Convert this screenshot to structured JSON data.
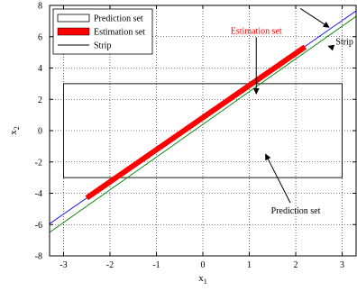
{
  "chart_data": {
    "type": "line",
    "xlabel": "x",
    "xlabel_sub": "1",
    "ylabel": "x",
    "ylabel_sub": "2",
    "xlim": [
      -3.3,
      3.3
    ],
    "ylim": [
      -8,
      8
    ],
    "xticks": [
      -3,
      -2,
      -1,
      0,
      1,
      2,
      3
    ],
    "yticks": [
      -8,
      -6,
      -4,
      -2,
      0,
      2,
      4,
      6,
      8
    ],
    "grid": true,
    "legend_position": "top-left",
    "legend": [
      {
        "label": "Prediction set",
        "style": "box"
      },
      {
        "label": "Estimation set",
        "style": "filled"
      },
      {
        "label": "Strip",
        "style": "line"
      }
    ],
    "series": [
      {
        "name": "Prediction set",
        "kind": "rectangle",
        "x": [
          -3,
          3
        ],
        "y": [
          -3,
          3
        ],
        "color": "#000000"
      },
      {
        "name": "Estimation set",
        "kind": "segment",
        "x": [
          -2.5,
          2.2
        ],
        "y": [
          -4.3,
          5.35
        ],
        "color": "#ff0000"
      },
      {
        "name": "Strip",
        "kind": "line",
        "x": [
          -3.3,
          3.3
        ],
        "y": [
          -5.95,
          7.65
        ],
        "color": "#0000ff"
      },
      {
        "name": "Strip",
        "kind": "line",
        "x": [
          -3.3,
          3.3
        ],
        "y": [
          -6.5,
          7.3
        ],
        "color": "#008000"
      }
    ],
    "annotations": [
      {
        "text": "Estimation set",
        "color": "#ff0000",
        "at": [
          1.15,
          6.2
        ],
        "arrow_to": [
          1.15,
          2.35
        ]
      },
      {
        "text": "Prediction set",
        "color": "#000000",
        "at": [
          2.0,
          -5.3
        ],
        "arrow_to": [
          1.35,
          -1.5
        ]
      },
      {
        "text": "Strip",
        "color": "#000000",
        "at": [
          3.05,
          5.5
        ],
        "arrow_from": [
          2.1,
          7.8
        ],
        "arrow_to": [
          2.72,
          6.6
        ],
        "arrow2_to": [
          2.7,
          5.4
        ]
      }
    ]
  }
}
